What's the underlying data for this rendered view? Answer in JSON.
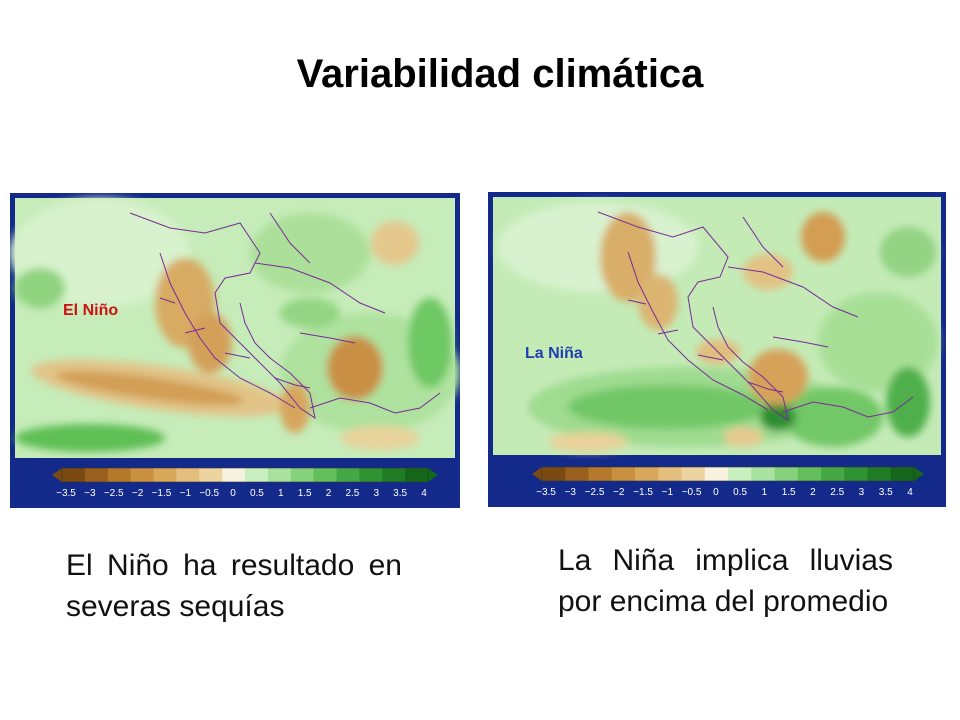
{
  "slide": {
    "title": "Variabilidad climática"
  },
  "left_map": {
    "label": "El Niño",
    "label_color": "#cc1111",
    "caption": "El Niño ha resultado en severas sequías"
  },
  "right_map": {
    "label": "La Niña",
    "label_color": "#1f3fb0",
    "caption": "La Niña implica lluvias por encima del promedio"
  },
  "colorbar": {
    "ticks": [
      "−3.5",
      "−3",
      "−2.5",
      "−2",
      "−1.5",
      "−1",
      "−0.5",
      "0",
      "0.5",
      "1",
      "1.5",
      "2",
      "2.5",
      "3",
      "3.5",
      "4"
    ],
    "colors": [
      "#7a4a12",
      "#99601d",
      "#b5792c",
      "#c9913f",
      "#d8a75a",
      "#e3be7c",
      "#ecd3a0",
      "#f7f1e0",
      "#c9eec0",
      "#a9e29e",
      "#86d27c",
      "#63bf5c",
      "#45a844",
      "#2f9232",
      "#1f7c24",
      "#13661a"
    ]
  },
  "colors": {
    "frame": "#142a8a",
    "land_base": "#c4eab8",
    "border_line": "#7a2a9a"
  }
}
